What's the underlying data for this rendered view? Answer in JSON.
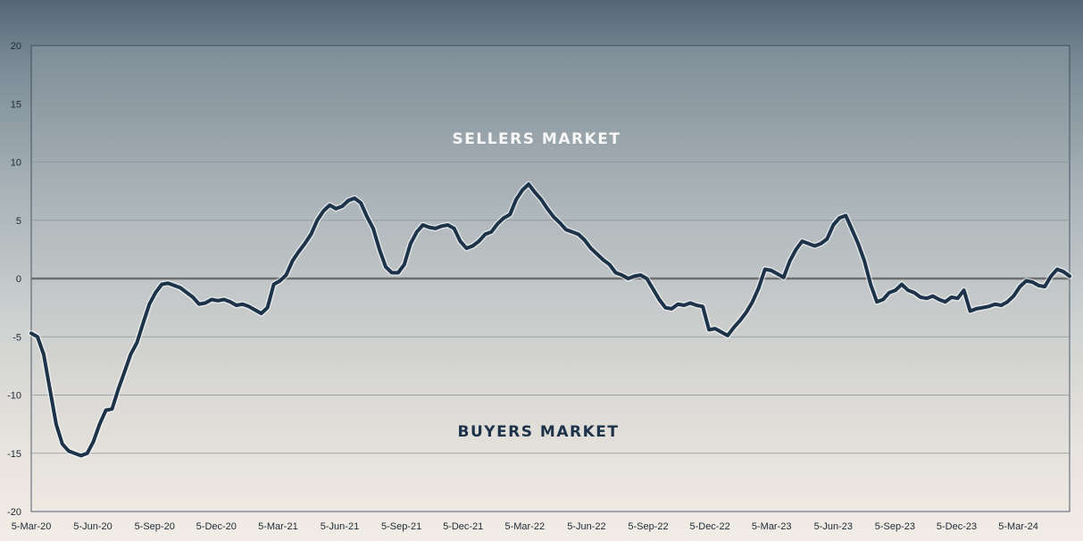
{
  "chart_data": {
    "type": "line",
    "title": "",
    "xlabel": "",
    "ylabel": "",
    "ylim": [
      -20,
      20
    ],
    "yticks": [
      20,
      15,
      10,
      5,
      0,
      -5,
      -10,
      -15,
      -20
    ],
    "xticks": [
      "5-Mar-20",
      "5-Jun-20",
      "5-Sep-20",
      "5-Dec-20",
      "5-Mar-21",
      "5-Jun-21",
      "5-Sep-21",
      "5-Dec-21",
      "5-Mar-22",
      "5-Jun-22",
      "5-Sep-22",
      "5-Dec-22",
      "5-Mar-23",
      "5-Jun-23",
      "5-Sep-23",
      "5-Dec-23",
      "5-Mar-24"
    ],
    "annotations": {
      "upper": "SELLERS MARKET",
      "lower": "BUYERS MARKET"
    },
    "grid": true,
    "reference_line": 0,
    "series": [
      {
        "values": [
          -4.7,
          -5.0,
          -6.5,
          -9.5,
          -12.5,
          -14.2,
          -14.8,
          -15.0,
          -15.2,
          -15.0,
          -14.0,
          -12.5,
          -11.3,
          -11.2,
          -9.5,
          -8.0,
          -6.5,
          -5.5,
          -3.8,
          -2.2,
          -1.2,
          -0.5,
          -0.4,
          -0.6,
          -0.8,
          -1.2,
          -1.6,
          -2.2,
          -2.1,
          -1.8,
          -1.9,
          -1.8,
          -2.0,
          -2.3,
          -2.2,
          -2.4,
          -2.7,
          -3.0,
          -2.5,
          -0.5,
          -0.2,
          0.3,
          1.5,
          2.3,
          3.0,
          3.8,
          5.0,
          5.8,
          6.3,
          6.0,
          6.2,
          6.7,
          6.9,
          6.5,
          5.3,
          4.3,
          2.5,
          1.0,
          0.5,
          0.5,
          1.2,
          3.0,
          4.0,
          4.6,
          4.4,
          4.3,
          4.5,
          4.6,
          4.3,
          3.2,
          2.6,
          2.8,
          3.2,
          3.8,
          4.0,
          4.7,
          5.2,
          5.5,
          6.8,
          7.6,
          8.1,
          7.4,
          6.8,
          6.0,
          5.3,
          4.8,
          4.2,
          4.0,
          3.8,
          3.3,
          2.6,
          2.1,
          1.6,
          1.2,
          0.5,
          0.3,
          0.0,
          0.2,
          0.3,
          0.0,
          -0.9,
          -1.8,
          -2.5,
          -2.6,
          -2.2,
          -2.3,
          -2.1,
          -2.3,
          -2.4,
          -4.4,
          -4.3,
          -4.6,
          -4.9,
          -4.2,
          -3.6,
          -2.9,
          -2.0,
          -0.8,
          0.8,
          0.7,
          0.4,
          0.1,
          1.5,
          2.5,
          3.2,
          3.0,
          2.8,
          3.0,
          3.4,
          4.6,
          5.2,
          5.4,
          4.2,
          3.0,
          1.5,
          -0.5,
          -2.0,
          -1.8,
          -1.2,
          -1.0,
          -0.5,
          -1.0,
          -1.2,
          -1.6,
          -1.7,
          -1.5,
          -1.8,
          -2.0,
          -1.6,
          -1.7,
          -1.0,
          -2.8,
          -2.6,
          -2.5,
          -2.4,
          -2.2,
          -2.3,
          -2.0,
          -1.5,
          -0.7,
          -0.2,
          -0.3,
          -0.6,
          -0.7,
          0.2,
          0.8,
          0.6,
          0.2
        ]
      }
    ]
  }
}
